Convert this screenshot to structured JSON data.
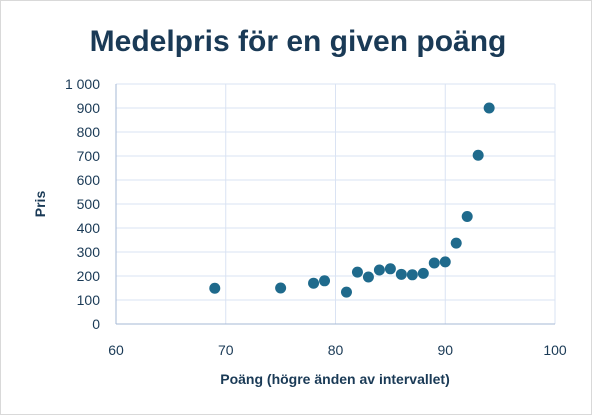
{
  "chart_data": {
    "type": "scatter",
    "title": "Medelpris för en given poäng",
    "xlabel": "Poäng (högre änden av intervallet)",
    "ylabel": "Pris",
    "xlim": [
      60,
      100
    ],
    "ylim": [
      0,
      1000
    ],
    "x_ticks": [
      60,
      70,
      80,
      90,
      100
    ],
    "x_tick_labels": [
      "60",
      "70",
      "80",
      "90",
      "100"
    ],
    "y_ticks": [
      0,
      100,
      200,
      300,
      400,
      500,
      600,
      700,
      800,
      900,
      1000
    ],
    "y_tick_labels": [
      "0",
      "100",
      "200",
      "300",
      "400",
      "500",
      "600",
      "700",
      "800",
      "900",
      "1 000"
    ],
    "grid": true,
    "legend": "none",
    "point_color": "#1f6a8c",
    "points": [
      {
        "x": 69,
        "y": 149
      },
      {
        "x": 75,
        "y": 150
      },
      {
        "x": 78,
        "y": 170
      },
      {
        "x": 79,
        "y": 180
      },
      {
        "x": 81,
        "y": 133
      },
      {
        "x": 82,
        "y": 216
      },
      {
        "x": 83,
        "y": 196
      },
      {
        "x": 84,
        "y": 225
      },
      {
        "x": 85,
        "y": 230
      },
      {
        "x": 86,
        "y": 207
      },
      {
        "x": 87,
        "y": 205
      },
      {
        "x": 88,
        "y": 211
      },
      {
        "x": 89,
        "y": 254
      },
      {
        "x": 90,
        "y": 259
      },
      {
        "x": 91,
        "y": 337
      },
      {
        "x": 92,
        "y": 448
      },
      {
        "x": 93,
        "y": 703
      },
      {
        "x": 94,
        "y": 900
      }
    ]
  }
}
